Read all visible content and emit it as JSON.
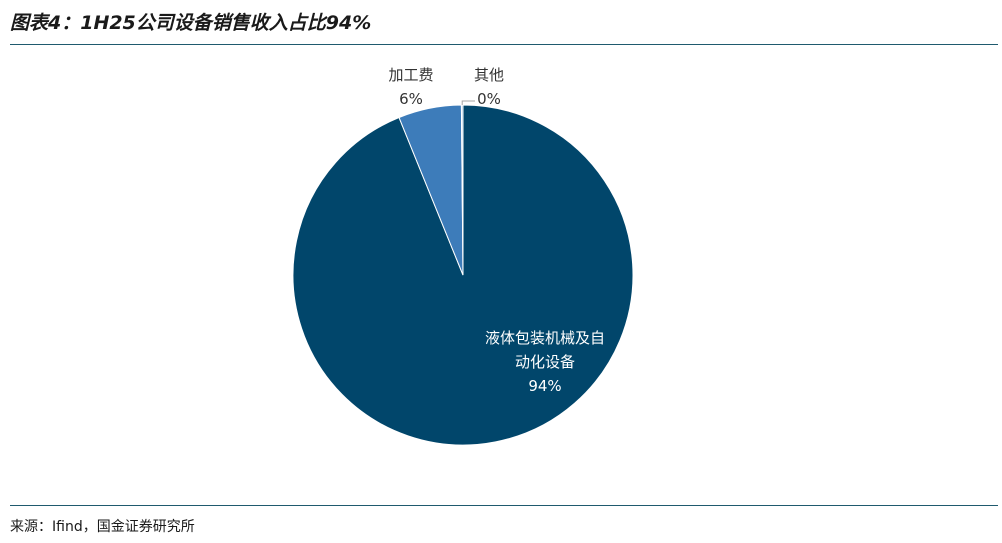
{
  "header": {
    "title": "图表4：1H25公司设备销售收入占比94%"
  },
  "footer": {
    "source": "来源：Ifind，国金证券研究所"
  },
  "colors": {
    "rule": "#1f5a6e",
    "text_dark": "#333333",
    "text_light": "#ffffff"
  },
  "chart_data": {
    "type": "pie",
    "slices": [
      {
        "name_lines": [
          "液体包装机械及自",
          "动化设备"
        ],
        "pct_label": "94%",
        "value": 94,
        "color": "#01466b"
      },
      {
        "name_lines": [
          "加工费"
        ],
        "pct_label": "6%",
        "value": 6,
        "color": "#3d7cba"
      },
      {
        "name_lines": [
          "其他"
        ],
        "pct_label": "0%",
        "value": 0.15,
        "color": "#a9cbe6"
      }
    ]
  }
}
